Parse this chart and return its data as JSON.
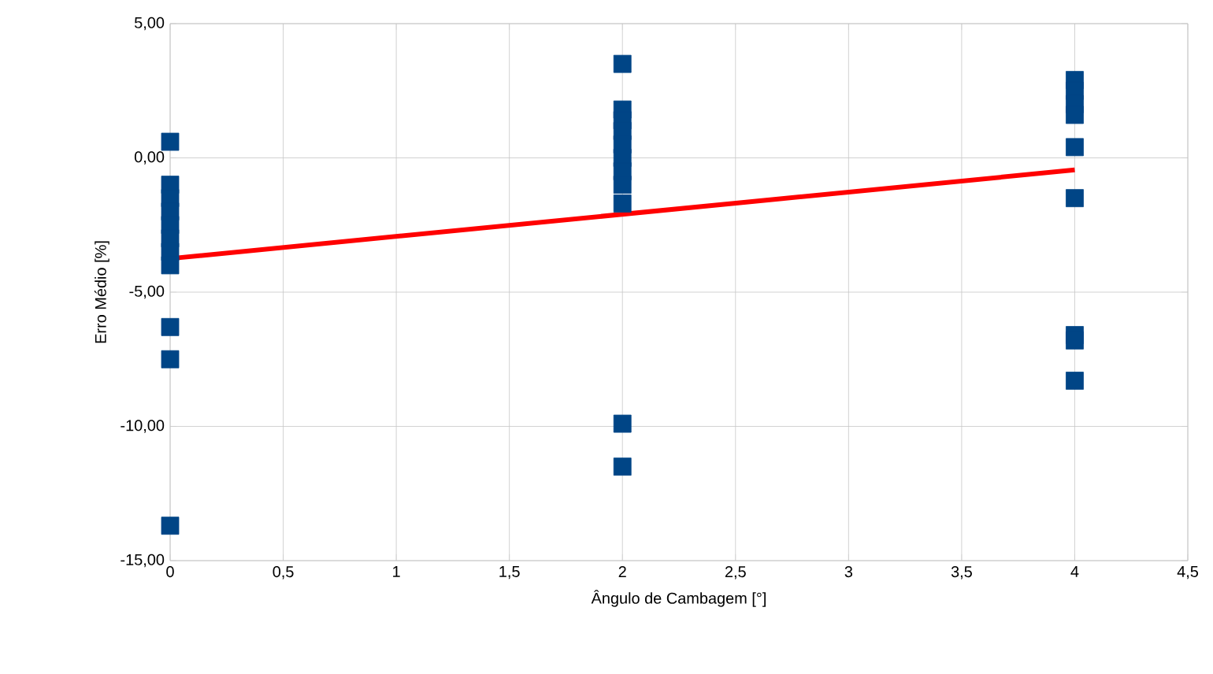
{
  "chart_data": {
    "type": "scatter",
    "xlabel": "Ângulo de Cambagem [°]",
    "ylabel": "Erro Médio [%]",
    "xlim": [
      0,
      4.5
    ],
    "ylim": [
      -15,
      5
    ],
    "xticks": [
      0,
      {
        "value": 0.5,
        "label": "0,5"
      },
      1,
      {
        "value": 1.5,
        "label": "1,5"
      },
      2,
      {
        "value": 2.5,
        "label": "2,5"
      },
      3,
      {
        "value": 3.5,
        "label": "3,5"
      },
      4,
      {
        "value": 4.5,
        "label": "4,5"
      }
    ],
    "yticks": [
      {
        "value": -15,
        "label": "-15,00"
      },
      {
        "value": -10,
        "label": "-10,00"
      },
      {
        "value": -5,
        "label": "-5,00"
      },
      {
        "value": 0,
        "label": "0,00"
      },
      {
        "value": 5,
        "label": "5,00"
      }
    ],
    "grid": true,
    "marker": "square",
    "series": [
      {
        "color": "#004586",
        "x": [
          0,
          0,
          0,
          0,
          0,
          0,
          0,
          0,
          0,
          0,
          0,
          2,
          2,
          2,
          2,
          2,
          2,
          2,
          2,
          2,
          2,
          2,
          4,
          4,
          4,
          4,
          4,
          4,
          4,
          4,
          4
        ],
        "values": [
          0.6,
          -1.0,
          -1.5,
          -2.0,
          -2.5,
          -3.0,
          -3.5,
          -4.0,
          -6.3,
          -7.5,
          -13.7,
          3.5,
          1.8,
          1.4,
          1.0,
          0.5,
          0.0,
          -0.5,
          -1.0,
          -1.7,
          -9.9,
          -11.5,
          2.9,
          2.5,
          2.0,
          1.6,
          0.4,
          -1.5,
          -6.6,
          -6.8,
          -8.3
        ]
      },
      {
        "type": "line",
        "color": "#ff0000",
        "marker": "none",
        "x": [
          0,
          4
        ],
        "values": [
          -3.75,
          -0.45
        ]
      }
    ]
  }
}
